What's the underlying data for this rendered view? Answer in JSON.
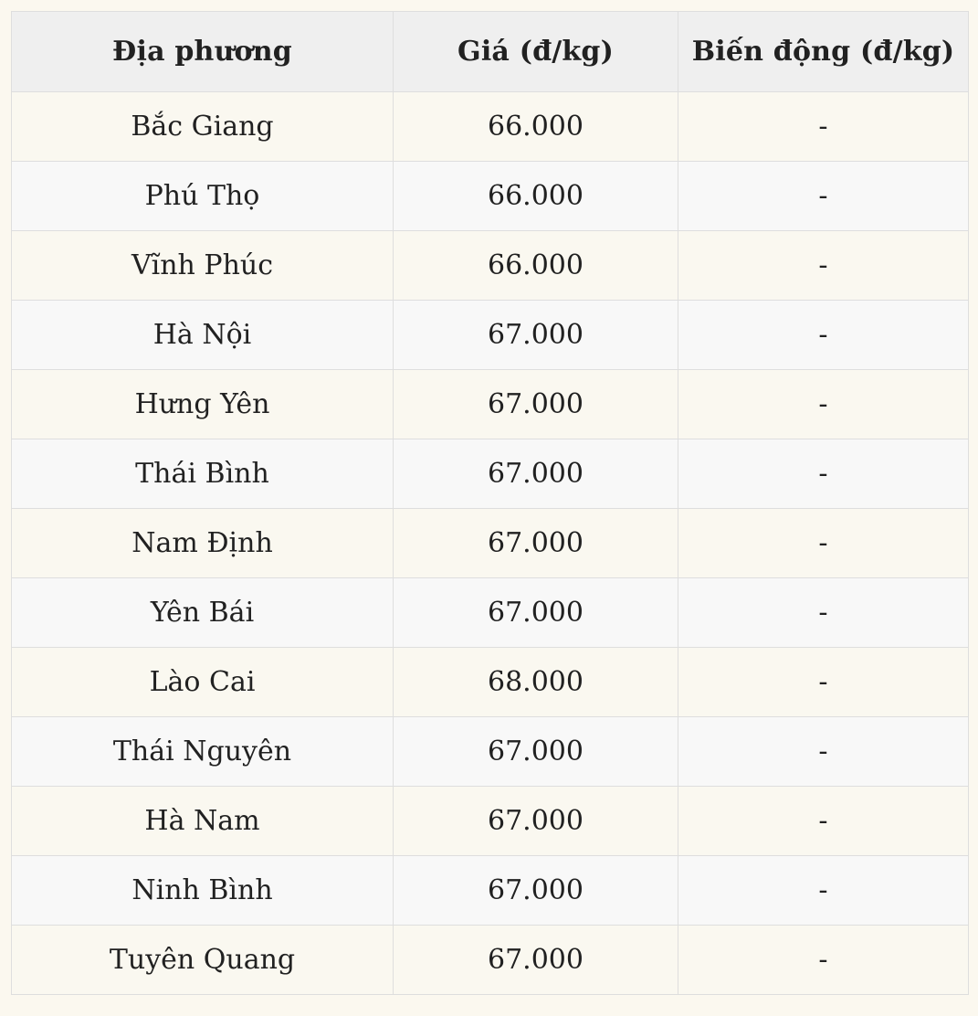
{
  "chart_data": {
    "type": "table",
    "columns": [
      "Địa phương",
      "Giá (đ/kg)",
      "Biến động (đ/kg)"
    ],
    "rows": [
      [
        "Bắc Giang",
        "66.000",
        "-"
      ],
      [
        "Phú Thọ",
        "66.000",
        "-"
      ],
      [
        "Vĩnh Phúc",
        "66.000",
        "-"
      ],
      [
        "Hà Nội",
        "67.000",
        "-"
      ],
      [
        "Hưng Yên",
        "67.000",
        "-"
      ],
      [
        "Thái Bình",
        "67.000",
        "-"
      ],
      [
        "Nam Định",
        "67.000",
        "-"
      ],
      [
        "Yên Bái",
        "67.000",
        "-"
      ],
      [
        "Lào Cai",
        "68.000",
        "-"
      ],
      [
        "Thái Nguyên",
        "67.000",
        "-"
      ],
      [
        "Hà Nam",
        "67.000",
        "-"
      ],
      [
        "Ninh Bình",
        "67.000",
        "-"
      ],
      [
        "Tuyên Quang",
        "67.000",
        "-"
      ]
    ]
  },
  "colors": {
    "page_background": "#fbf8ef",
    "header_background": "#efefef",
    "row_odd_background": "#faf8f0",
    "row_even_background": "#f8f8f8",
    "border": "#dedede",
    "outer_border": "#d6d6d6",
    "text": "#212121"
  }
}
